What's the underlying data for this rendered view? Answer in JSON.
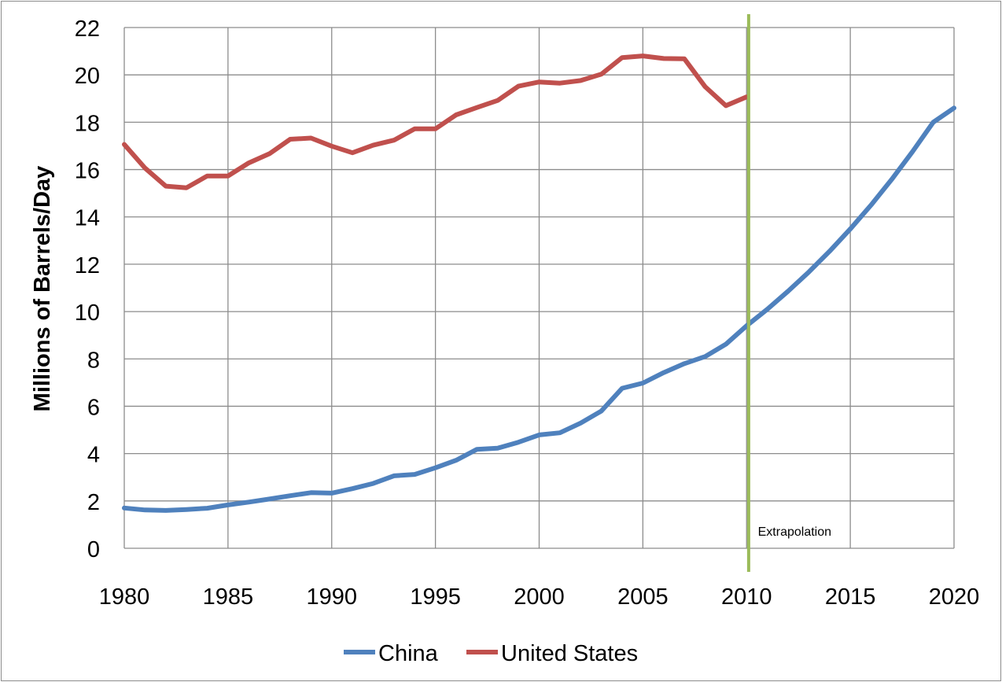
{
  "chart_data": {
    "type": "line",
    "title": "",
    "xlabel": "",
    "ylabel": "Millions of Barrels/Day",
    "xlim": [
      1980,
      2020
    ],
    "ylim": [
      0,
      22
    ],
    "x_ticks": [
      1980,
      1985,
      1990,
      1995,
      2000,
      2005,
      2010,
      2015,
      2020
    ],
    "y_ticks": [
      0,
      2,
      4,
      6,
      8,
      10,
      12,
      14,
      16,
      18,
      20,
      22
    ],
    "grid": true,
    "legend_position": "bottom",
    "series": [
      {
        "name": "China",
        "color": "#4f81bd",
        "x": [
          1980,
          1981,
          1982,
          1983,
          1984,
          1985,
          1986,
          1987,
          1988,
          1989,
          1990,
          1991,
          1992,
          1993,
          1994,
          1995,
          1996,
          1997,
          1998,
          1999,
          2000,
          2001,
          2002,
          2003,
          2004,
          2005,
          2006,
          2007,
          2008,
          2009,
          2010,
          2011,
          2012,
          2013,
          2014,
          2015,
          2016,
          2017,
          2018,
          2019,
          2020
        ],
        "values": [
          1.7,
          1.62,
          1.6,
          1.64,
          1.69,
          1.83,
          1.95,
          2.08,
          2.22,
          2.35,
          2.33,
          2.52,
          2.74,
          3.06,
          3.12,
          3.4,
          3.72,
          4.18,
          4.23,
          4.48,
          4.79,
          4.88,
          5.29,
          5.8,
          6.76,
          6.98,
          7.42,
          7.8,
          8.1,
          8.62,
          9.4,
          10.1,
          10.86,
          11.67,
          12.55,
          13.49,
          14.5,
          15.59,
          16.76,
          18.0,
          18.6
        ]
      },
      {
        "name": "United States",
        "color": "#c0504d",
        "x": [
          1980,
          1981,
          1982,
          1983,
          1984,
          1985,
          1986,
          1987,
          1988,
          1989,
          1990,
          1991,
          1992,
          1993,
          1994,
          1995,
          1996,
          1997,
          1998,
          1999,
          2000,
          2001,
          2002,
          2003,
          2004,
          2005,
          2006,
          2007,
          2008,
          2009,
          2010
        ],
        "values": [
          17.06,
          16.06,
          15.3,
          15.23,
          15.73,
          15.73,
          16.28,
          16.67,
          17.28,
          17.33,
          16.99,
          16.71,
          17.03,
          17.24,
          17.72,
          17.72,
          18.31,
          18.62,
          18.92,
          19.52,
          19.7,
          19.65,
          19.76,
          20.03,
          20.73,
          20.8,
          20.69,
          20.68,
          19.5,
          18.7,
          19.07
        ]
      }
    ],
    "annotations": [
      {
        "type": "vline",
        "x": 2010.1,
        "color": "#9bbb59"
      },
      {
        "type": "text",
        "x": 2011,
        "y": 0.6,
        "text": "Extrapolation"
      }
    ]
  }
}
